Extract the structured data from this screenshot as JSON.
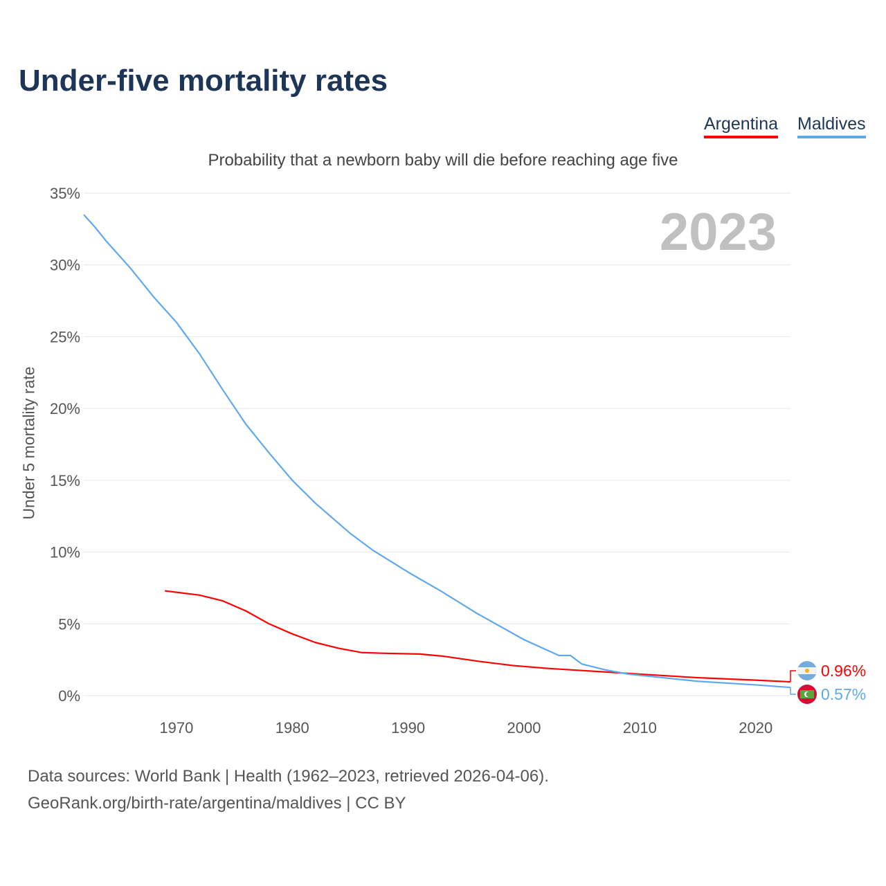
{
  "title": "Under-five mortality rates",
  "legend": [
    {
      "name": "Argentina",
      "color": "#ff0000"
    },
    {
      "name": "Maldives",
      "color": "#5fa8f0"
    }
  ],
  "chart_data": {
    "type": "line",
    "title": "Under-five mortality rates",
    "subtitle": "Probability that a newborn baby will die before reaching age five",
    "ylabel": "Under 5 mortality rate",
    "xlabel": "",
    "xlim": [
      1962,
      2023
    ],
    "ylim": [
      0,
      35
    ],
    "xticks": [
      1970,
      1980,
      1990,
      2000,
      2010,
      2020
    ],
    "yticks": [
      0,
      5,
      10,
      15,
      20,
      25,
      30,
      35
    ],
    "ytick_labels": [
      "0%",
      "5%",
      "10%",
      "15%",
      "20%",
      "25%",
      "30%",
      "35%"
    ],
    "current_year": "2023",
    "grid": true,
    "legend_placement": "top-right",
    "series": [
      {
        "name": "Argentina",
        "color": "#ff0000",
        "end_label": "0.96%",
        "x": [
          1969,
          1972,
          1974,
          1976,
          1978,
          1980,
          1982,
          1984,
          1986,
          1988,
          1991,
          1993,
          1996,
          1999,
          2002,
          2005,
          2008,
          2011,
          2015,
          2020,
          2023
        ],
        "y": [
          7.3,
          7.0,
          6.6,
          5.9,
          5.0,
          4.3,
          3.7,
          3.3,
          3.0,
          2.95,
          2.9,
          2.75,
          2.4,
          2.1,
          1.9,
          1.75,
          1.6,
          1.45,
          1.25,
          1.08,
          0.96
        ]
      },
      {
        "name": "Maldives",
        "color": "#5fa8f0",
        "end_label": "0.57%",
        "x": [
          1962,
          1963,
          1964,
          1966,
          1968,
          1970,
          1972,
          1974,
          1976,
          1978,
          1980,
          1982,
          1985,
          1987,
          1990,
          1993,
          1996,
          2000,
          2003,
          2004,
          2005,
          2007,
          2009,
          2012,
          2015,
          2020,
          2023
        ],
        "y": [
          33.5,
          32.6,
          31.6,
          29.8,
          27.8,
          26.0,
          23.8,
          21.3,
          18.9,
          16.9,
          15.0,
          13.4,
          11.3,
          10.1,
          8.6,
          7.2,
          5.7,
          3.9,
          2.8,
          2.8,
          2.2,
          1.8,
          1.5,
          1.25,
          1.0,
          0.75,
          0.57
        ]
      }
    ]
  },
  "footer": [
    "Data sources: World Bank | Health (1962–2023, retrieved 2026-04-06).",
    "GeoRank.org/birth-rate/argentina/maldives | CC BY"
  ]
}
